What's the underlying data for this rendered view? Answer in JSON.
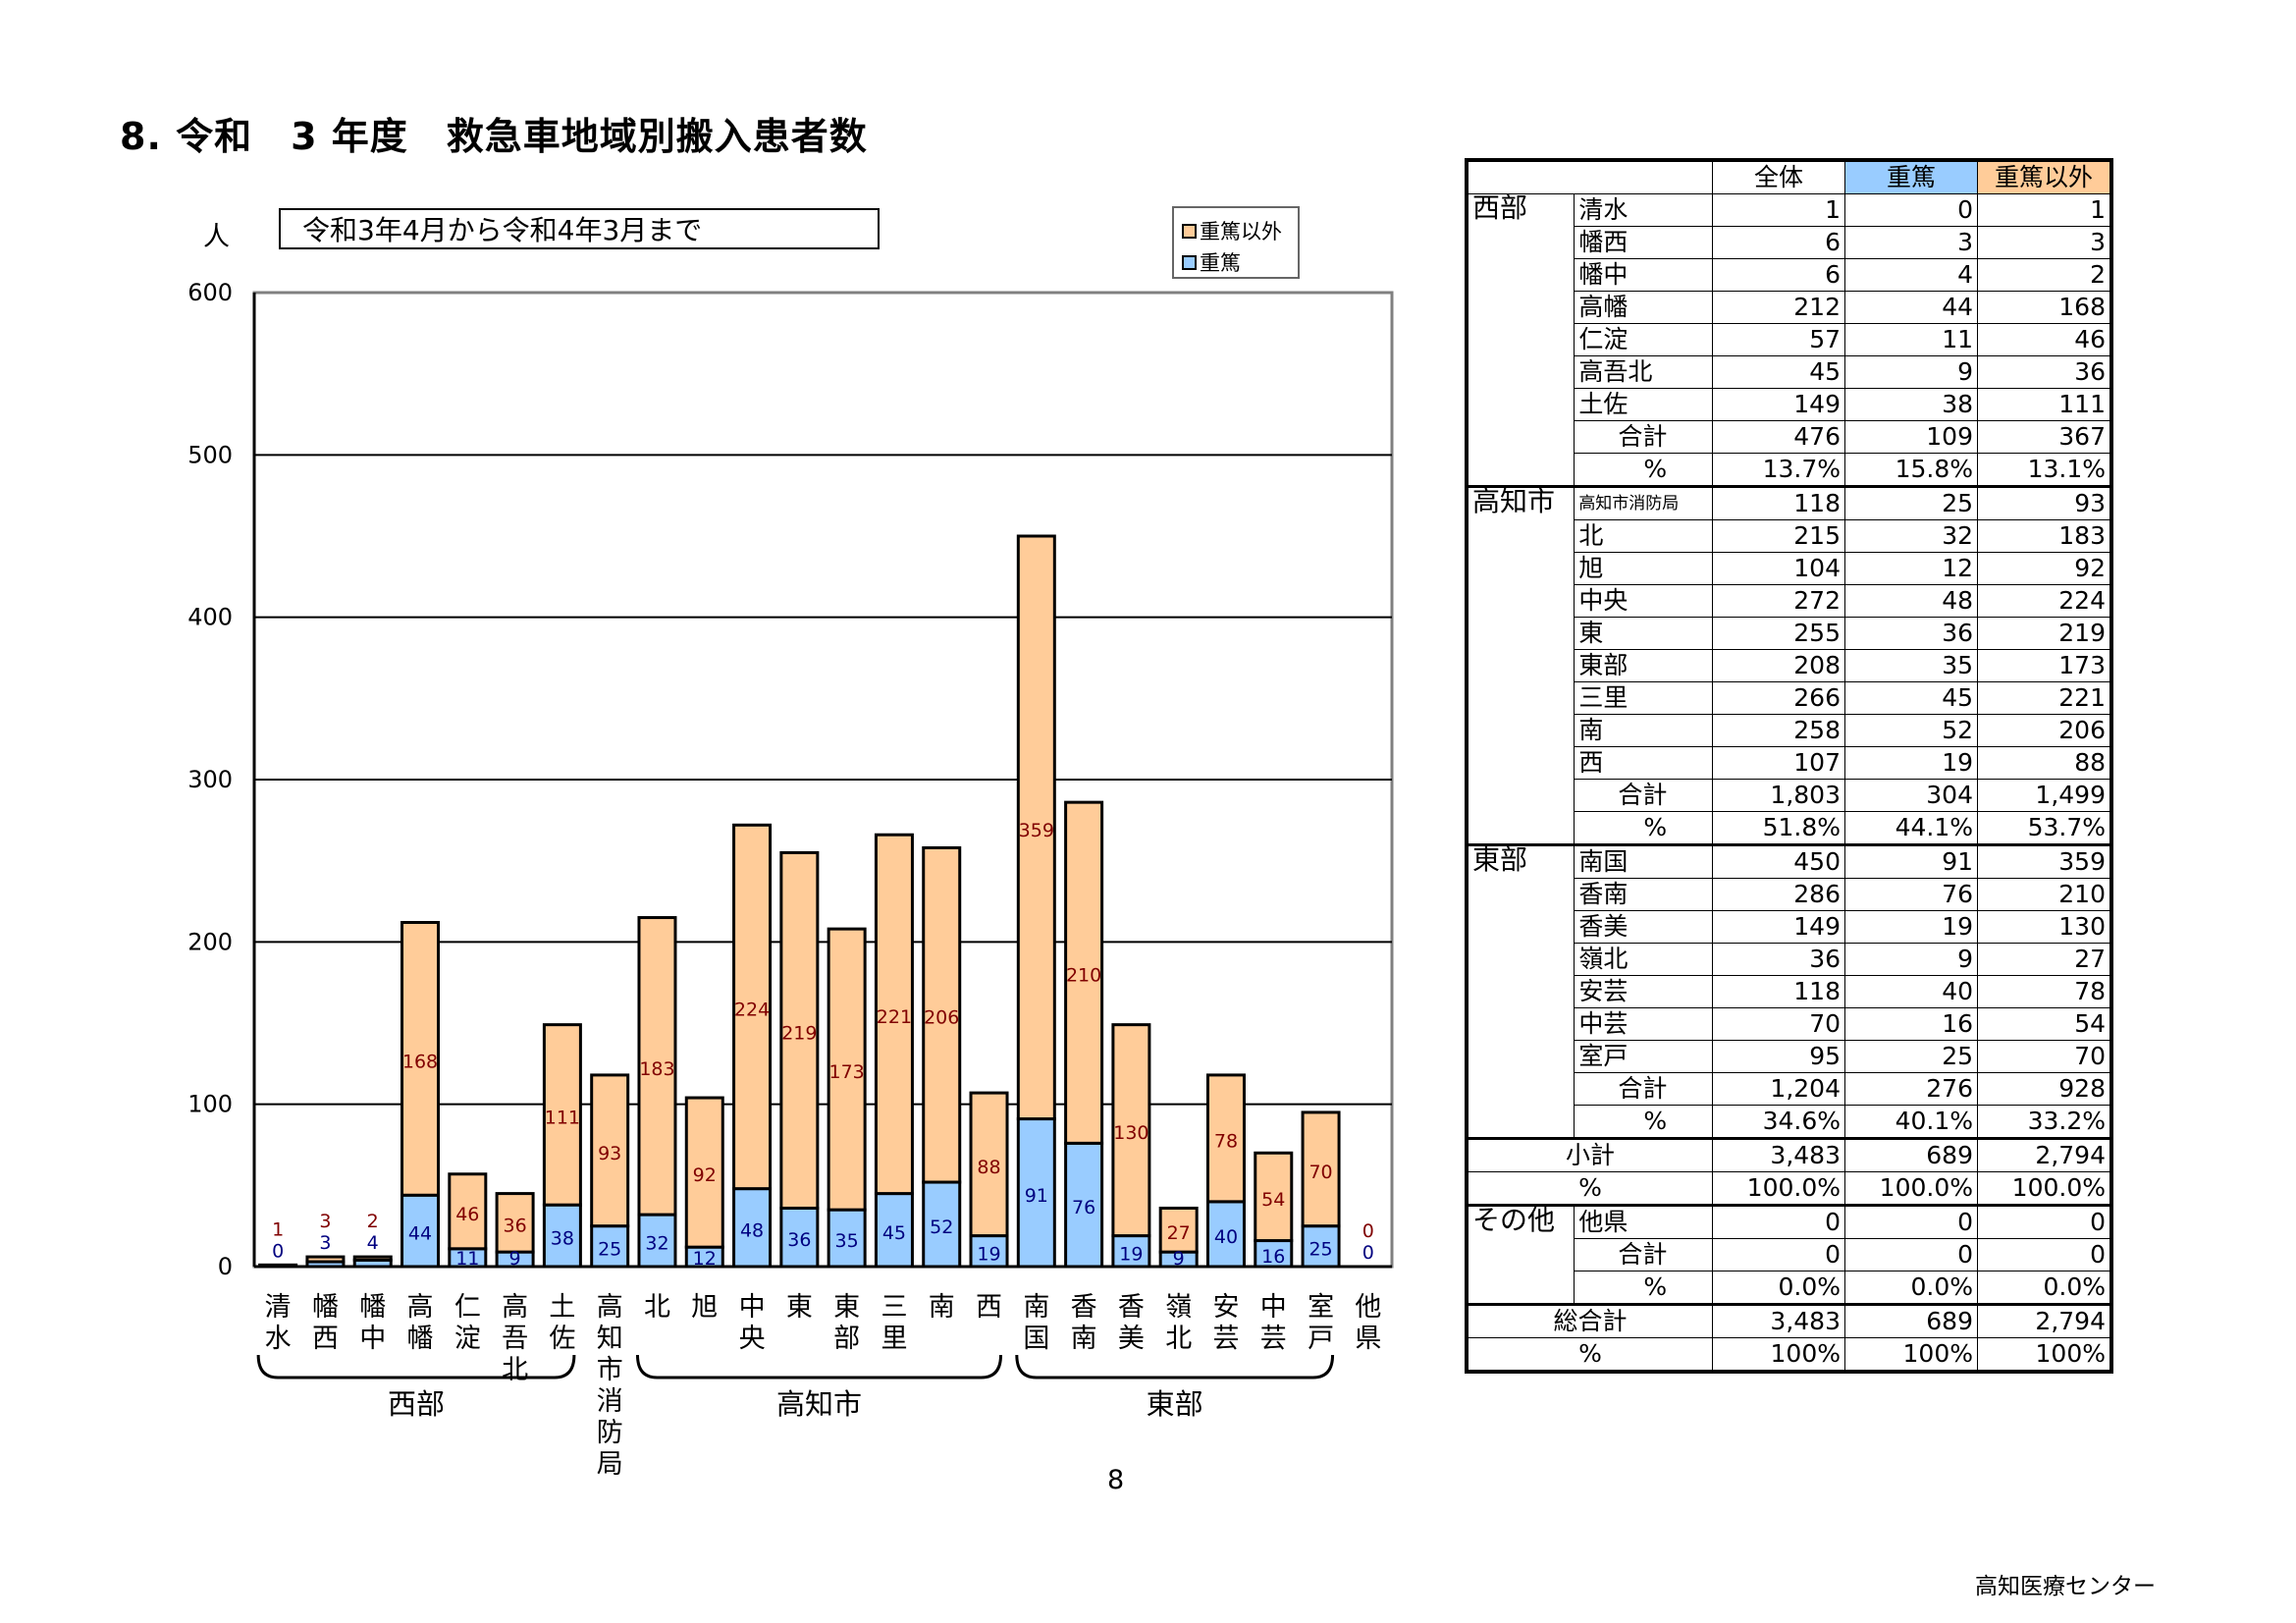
{
  "title": "8. 令和　3 年度　救急車地域別搬入患者数",
  "period": "令和3年4月から令和4年3月まで",
  "page_number": "8",
  "footer": "高知医療センター",
  "colors": {
    "severe": "#99ccff",
    "non_severe": "#ffcc99",
    "header_severe": "#99ccff",
    "header_non_severe": "#ffcc99"
  },
  "chart_data": {
    "type": "bar",
    "stacked": true,
    "ylabel": "人",
    "ylim": [
      0,
      600
    ],
    "yticks": [
      "0",
      "100",
      "200",
      "300",
      "400",
      "500",
      "600"
    ],
    "grid": true,
    "legend_position": "top-right",
    "categories": [
      "清水",
      "幡西",
      "幡中",
      "高幡",
      "仁淀",
      "高吾北",
      "土佐",
      "高知市消防局",
      "北",
      "旭",
      "中央",
      "東",
      "東部",
      "三里",
      "南",
      "西",
      "南国",
      "香南",
      "香美",
      "嶺北",
      "安芸",
      "中芸",
      "室戸",
      "他県"
    ],
    "series": [
      {
        "name": "重篤",
        "values": [
          0,
          3,
          4,
          44,
          11,
          9,
          38,
          25,
          32,
          12,
          48,
          36,
          35,
          45,
          52,
          19,
          91,
          76,
          19,
          9,
          40,
          16,
          25,
          0
        ]
      },
      {
        "name": "重篤以外",
        "values": [
          1,
          3,
          2,
          168,
          46,
          36,
          111,
          93,
          183,
          92,
          224,
          219,
          173,
          221,
          206,
          88,
          359,
          210,
          130,
          27,
          78,
          54,
          70,
          0
        ]
      }
    ],
    "groups": [
      {
        "label": "西部",
        "from": 0,
        "to": 6
      },
      {
        "label": "高知市",
        "from": 8,
        "to": 15
      },
      {
        "label": "東部",
        "from": 16,
        "to": 22
      }
    ]
  },
  "table": {
    "headers": [
      "全体",
      "重篤",
      "重篤以外"
    ],
    "groups": [
      {
        "name": "西部",
        "rows": [
          {
            "label": "清水",
            "v": [
              "1",
              "0",
              "1"
            ]
          },
          {
            "label": "幡西",
            "v": [
              "6",
              "3",
              "3"
            ]
          },
          {
            "label": "幡中",
            "v": [
              "6",
              "4",
              "2"
            ]
          },
          {
            "label": "高幡",
            "v": [
              "212",
              "44",
              "168"
            ]
          },
          {
            "label": "仁淀",
            "v": [
              "57",
              "11",
              "46"
            ]
          },
          {
            "label": "高吾北",
            "v": [
              "45",
              "9",
              "36"
            ]
          },
          {
            "label": "土佐",
            "v": [
              "149",
              "38",
              "111"
            ]
          }
        ],
        "sum": {
          "label": "合計",
          "v": [
            "476",
            "109",
            "367"
          ]
        },
        "pct": {
          "label": "%",
          "v": [
            "13.7%",
            "15.8%",
            "13.1%"
          ]
        }
      },
      {
        "name": "高知市",
        "rows": [
          {
            "label": "高知市消防局",
            "v": [
              "118",
              "25",
              "93"
            ]
          },
          {
            "label": "北",
            "v": [
              "215",
              "32",
              "183"
            ]
          },
          {
            "label": "旭",
            "v": [
              "104",
              "12",
              "92"
            ]
          },
          {
            "label": "中央",
            "v": [
              "272",
              "48",
              "224"
            ]
          },
          {
            "label": "東",
            "v": [
              "255",
              "36",
              "219"
            ]
          },
          {
            "label": "東部",
            "v": [
              "208",
              "35",
              "173"
            ]
          },
          {
            "label": "三里",
            "v": [
              "266",
              "45",
              "221"
            ]
          },
          {
            "label": "南",
            "v": [
              "258",
              "52",
              "206"
            ]
          },
          {
            "label": "西",
            "v": [
              "107",
              "19",
              "88"
            ]
          }
        ],
        "sum": {
          "label": "合計",
          "v": [
            "1,803",
            "304",
            "1,499"
          ]
        },
        "pct": {
          "label": "%",
          "v": [
            "51.8%",
            "44.1%",
            "53.7%"
          ]
        }
      },
      {
        "name": "東部",
        "rows": [
          {
            "label": "南国",
            "v": [
              "450",
              "91",
              "359"
            ]
          },
          {
            "label": "香南",
            "v": [
              "286",
              "76",
              "210"
            ]
          },
          {
            "label": "香美",
            "v": [
              "149",
              "19",
              "130"
            ]
          },
          {
            "label": "嶺北",
            "v": [
              "36",
              "9",
              "27"
            ]
          },
          {
            "label": "安芸",
            "v": [
              "118",
              "40",
              "78"
            ]
          },
          {
            "label": "中芸",
            "v": [
              "70",
              "16",
              "54"
            ]
          },
          {
            "label": "室戸",
            "v": [
              "95",
              "25",
              "70"
            ]
          }
        ],
        "sum": {
          "label": "合計",
          "v": [
            "1,204",
            "276",
            "928"
          ]
        },
        "pct": {
          "label": "%",
          "v": [
            "34.6%",
            "40.1%",
            "33.2%"
          ]
        }
      }
    ],
    "subtotal": {
      "label": "小計",
      "v": [
        "3,483",
        "689",
        "2,794"
      ]
    },
    "subtotal_pct": {
      "label": "%",
      "v": [
        "100.0%",
        "100.0%",
        "100.0%"
      ]
    },
    "other": {
      "name": "その他",
      "rows": [
        {
          "label": "他県",
          "v": [
            "0",
            "0",
            "0"
          ]
        }
      ],
      "sum": {
        "label": "合計",
        "v": [
          "0",
          "0",
          "0"
        ]
      },
      "pct": {
        "label": "%",
        "v": [
          "0.0%",
          "0.0%",
          "0.0%"
        ]
      }
    },
    "grand_total": {
      "label": "総合計",
      "v": [
        "3,483",
        "689",
        "2,794"
      ]
    },
    "grand_pct": {
      "label": "%",
      "v": [
        "100%",
        "100%",
        "100%"
      ]
    }
  }
}
